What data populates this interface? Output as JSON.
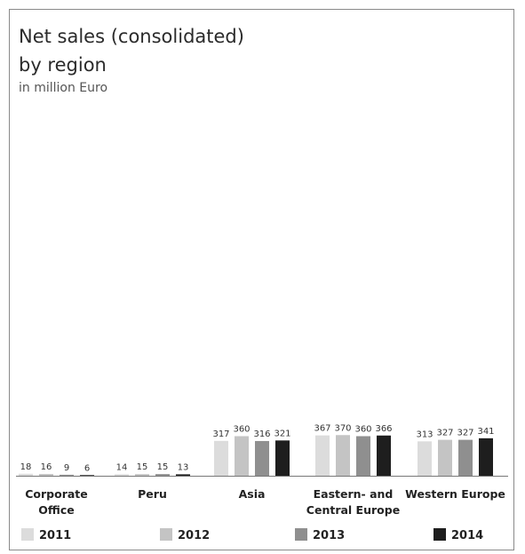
{
  "chart_data": {
    "type": "bar",
    "title_line1": "Net sales (consolidated)",
    "title_line2": "by region",
    "subtitle": "in million Euro",
    "categories": [
      [
        "Corporate",
        "Office"
      ],
      [
        "Peru"
      ],
      [
        "Asia"
      ],
      [
        "Eastern- and",
        "Central Europe"
      ],
      [
        "Western Europe"
      ]
    ],
    "series": [
      {
        "name": "2011",
        "color": "#dcdcdc",
        "values": [
          18,
          14,
          317,
          367,
          313
        ]
      },
      {
        "name": "2012",
        "color": "#c4c4c4",
        "values": [
          16,
          15,
          360,
          370,
          327
        ]
      },
      {
        "name": "2013",
        "color": "#8f8f8f",
        "values": [
          9,
          15,
          316,
          360,
          327
        ]
      },
      {
        "name": "2014",
        "color": "#1e1e1e",
        "values": [
          6,
          13,
          321,
          366,
          341
        ]
      }
    ],
    "ylim": [
      0,
      400
    ],
    "grid": false,
    "legend_position": "bottom"
  }
}
